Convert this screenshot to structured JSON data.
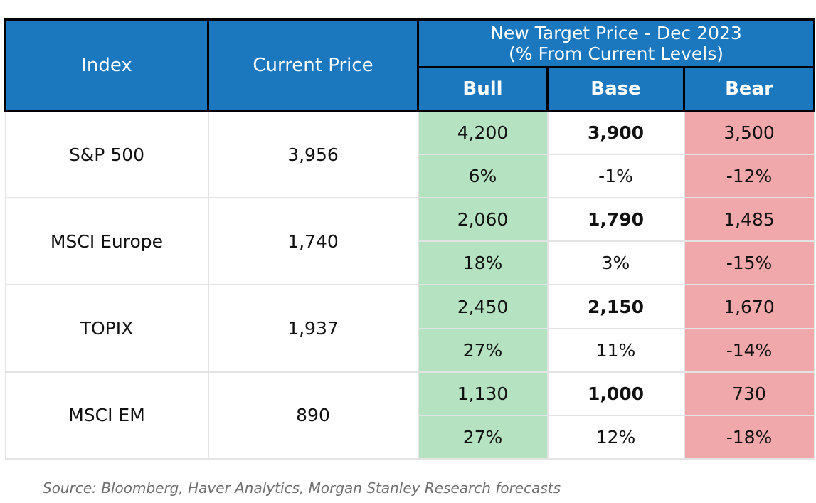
{
  "chart_data": {
    "type": "table",
    "header": {
      "index": "Index",
      "current_price": "Current Price",
      "group_line1": "New Target Price - Dec 2023",
      "group_line2": "(% From Current Levels)",
      "bull": "Bull",
      "base": "Base",
      "bear": "Bear"
    },
    "rows": [
      {
        "index": "S&P 500",
        "current": "3,956",
        "bull": "4,200",
        "base": "3,900",
        "bear": "3,500",
        "bull_pct": "6%",
        "base_pct": "-1%",
        "bear_pct": "-12%"
      },
      {
        "index": "MSCI Europe",
        "current": "1,740",
        "bull": "2,060",
        "base": "1,790",
        "bear": "1,485",
        "bull_pct": "18%",
        "base_pct": "3%",
        "bear_pct": "-15%"
      },
      {
        "index": "TOPIX",
        "current": "1,937",
        "bull": "2,450",
        "base": "2,150",
        "bear": "1,670",
        "bull_pct": "27%",
        "base_pct": "11%",
        "bear_pct": "-14%"
      },
      {
        "index": "MSCI EM",
        "current": "890",
        "bull": "1,130",
        "base": "1,000",
        "bear": "730",
        "bull_pct": "27%",
        "base_pct": "12%",
        "bear_pct": "-18%"
      }
    ],
    "source": "Source: Bloomberg, Haver Analytics, Morgan Stanley Research forecasts"
  },
  "colors": {
    "header_blue": "#1b78bf",
    "bull_green": "#b5e3c2",
    "bear_red": "#f0a8aa"
  }
}
